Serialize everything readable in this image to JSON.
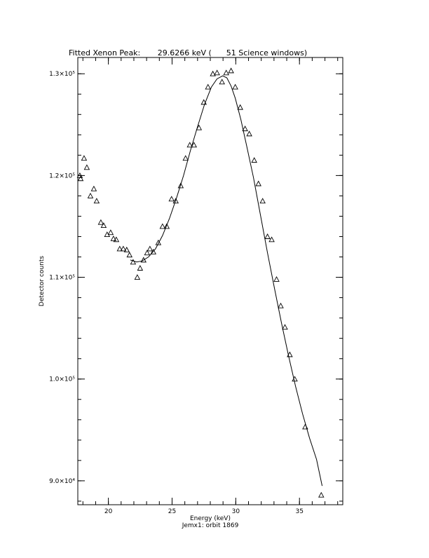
{
  "chart_data": {
    "type": "scatter",
    "title": "Fitted Xenon Peak:       29.6266 keV (      51 Science windows)",
    "subtitle": "Jemx1: orbit 1869",
    "x_label": "Energy (keV)",
    "y_label": "Detector counts",
    "color": "#000000",
    "minor_ticks": 5,
    "xlim": [
      17.6,
      38.4
    ],
    "ylim": [
      87650,
      131600
    ],
    "xticks": [
      20,
      25,
      30,
      35
    ],
    "yticks": [
      {
        "value": 90000,
        "label": "9.0×10⁴"
      },
      {
        "value": 100000,
        "label": "1.0×10⁵"
      },
      {
        "value": 110000,
        "label": "1.1×10⁵"
      },
      {
        "value": 120000,
        "label": "1.2×10⁵"
      },
      {
        "value": 130000,
        "label": "1.3×10⁵"
      }
    ],
    "series": [
      {
        "marker": "triangle",
        "x": [
          17.76,
          17.82,
          18.09,
          18.31,
          18.59,
          18.86,
          19.08,
          19.41,
          19.63,
          19.9,
          20.18,
          20.4,
          20.62,
          20.89,
          21.17,
          21.44,
          21.66,
          21.94,
          22.27,
          22.49,
          22.76,
          23.04,
          23.26,
          23.53,
          23.92,
          24.25,
          24.58,
          24.96,
          25.29,
          25.68,
          26.06,
          26.39,
          26.72,
          27.11,
          27.49,
          27.82,
          28.2,
          28.53,
          28.92,
          29.25,
          29.63,
          29.96,
          30.35,
          30.73,
          31.06,
          31.45,
          31.78,
          32.11,
          32.49,
          32.82,
          33.2,
          33.53,
          33.86,
          34.24,
          34.63,
          35.45,
          36.71
        ],
        "values": [
          120000,
          119700,
          121700,
          120800,
          118000,
          118700,
          117500,
          115400,
          115100,
          114200,
          114400,
          113800,
          113700,
          112800,
          112800,
          112700,
          112200,
          111500,
          110000,
          110900,
          111700,
          112400,
          112800,
          112500,
          113400,
          115000,
          115000,
          117700,
          117500,
          119000,
          121700,
          123000,
          123000,
          124700,
          127200,
          128700,
          130000,
          130100,
          129200,
          130100,
          130300,
          128700,
          126700,
          124600,
          124100,
          121500,
          119200,
          117500,
          114000,
          113700,
          109800,
          107200,
          105100,
          102400,
          100000,
          95300,
          88600
        ]
      },
      {
        "marker": "line",
        "x": [
          21.72,
          22.22,
          22.65,
          23.15,
          23.7,
          24.25,
          24.8,
          25.35,
          25.9,
          26.45,
          27.0,
          27.55,
          28.09,
          28.53,
          28.97,
          29.3,
          29.63,
          29.96,
          30.4,
          30.84,
          31.39,
          31.94,
          32.49,
          33.04,
          33.59,
          34.14,
          34.69,
          35.24,
          35.79,
          36.34,
          36.78
        ],
        "values": [
          111700,
          111500,
          111600,
          112000,
          112800,
          114100,
          115800,
          117800,
          120000,
          122500,
          124800,
          127000,
          128700,
          129500,
          129800,
          129600,
          128800,
          127600,
          125500,
          123000,
          119800,
          116100,
          112400,
          108900,
          105500,
          102300,
          99300,
          96600,
          94200,
          92100,
          89500
        ]
      }
    ]
  }
}
